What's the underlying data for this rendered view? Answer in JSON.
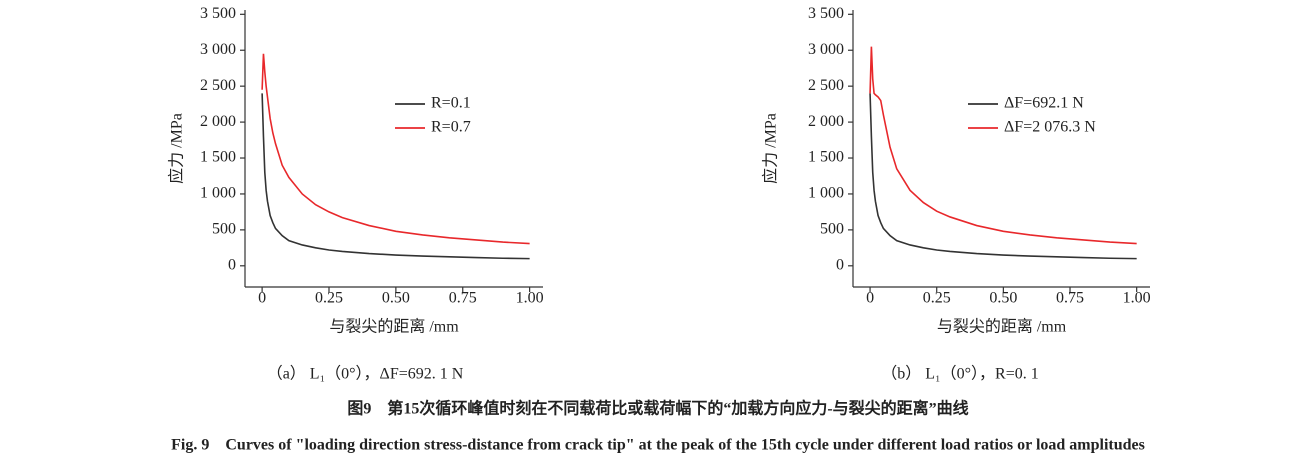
{
  "chart_data": [
    {
      "type": "line",
      "subcaption": "（a） L₁（0°），ΔF=692. 1 N",
      "xlabel": "与裂尖的距离 /mm",
      "ylabel": "应力 /MPa",
      "x": [
        0,
        0.005,
        0.01,
        0.015,
        0.02,
        0.03,
        0.04,
        0.05,
        0.075,
        0.1,
        0.15,
        0.2,
        0.25,
        0.3,
        0.4,
        0.5,
        0.6,
        0.7,
        0.8,
        0.9,
        1.0
      ],
      "series": [
        {
          "name": "R=0.1",
          "color": "#333333",
          "values": [
            2400,
            1800,
            1300,
            1050,
            900,
            700,
            600,
            520,
            420,
            350,
            290,
            250,
            220,
            200,
            170,
            150,
            135,
            125,
            115,
            105,
            100
          ]
        },
        {
          "name": "R=0.7",
          "color": "#e8282b",
          "values": [
            2450,
            2950,
            2700,
            2500,
            2350,
            2050,
            1850,
            1700,
            1400,
            1230,
            1000,
            850,
            750,
            670,
            560,
            480,
            430,
            390,
            360,
            330,
            310
          ]
        }
      ],
      "xlim": [
        -0.064,
        1.05
      ],
      "ylim": [
        -295,
        3560
      ],
      "xticks": [
        0,
        0.25,
        {
          "value": 0.5,
          "label": "0.50"
        },
        0.75,
        {
          "value": 1,
          "label": "1.00"
        }
      ],
      "yticks": [
        0,
        500,
        {
          "value": 1000,
          "label": "1 000"
        },
        {
          "value": 1500,
          "label": "1 500"
        },
        {
          "value": 2000,
          "label": "2 000"
        },
        {
          "value": 2500,
          "label": "2 500"
        },
        {
          "value": 3000,
          "label": "3 000"
        },
        {
          "value": 3500,
          "label": "3 500"
        }
      ]
    },
    {
      "type": "line",
      "subcaption": "（b） L₁（0°），R=0. 1",
      "xlabel": "与裂尖的距离 /mm",
      "ylabel": "应力 /MPa",
      "x": [
        0,
        0.005,
        0.01,
        0.015,
        0.02,
        0.03,
        0.04,
        0.05,
        0.075,
        0.1,
        0.15,
        0.2,
        0.25,
        0.3,
        0.4,
        0.5,
        0.6,
        0.7,
        0.8,
        0.9,
        1.0
      ],
      "series": [
        {
          "name": "ΔF=692.1 N",
          "color": "#333333",
          "values": [
            2400,
            1800,
            1300,
            1050,
            900,
            700,
            600,
            520,
            420,
            350,
            290,
            250,
            220,
            200,
            170,
            150,
            135,
            125,
            115,
            105,
            100
          ]
        },
        {
          "name": "ΔF=2 076.3 N",
          "color": "#e8282b",
          "values": [
            2400,
            3050,
            2600,
            2400,
            2380,
            2350,
            2300,
            2100,
            1650,
            1350,
            1050,
            880,
            760,
            680,
            560,
            480,
            430,
            390,
            360,
            330,
            310
          ]
        }
      ],
      "xlim": [
        -0.064,
        1.05
      ],
      "ylim": [
        -295,
        3560
      ],
      "xticks": [
        0,
        0.25,
        {
          "value": 0.5,
          "label": "0.50"
        },
        0.75,
        {
          "value": 1,
          "label": "1.00"
        }
      ],
      "yticks": [
        0,
        500,
        {
          "value": 1000,
          "label": "1 000"
        },
        {
          "value": 1500,
          "label": "1 500"
        },
        {
          "value": 2000,
          "label": "2 000"
        },
        {
          "value": 2500,
          "label": "2 500"
        },
        {
          "value": 3000,
          "label": "3 000"
        },
        {
          "value": 3500,
          "label": "3 500"
        }
      ]
    }
  ],
  "figure": {
    "caption_cn": "图9　第15次循环峰值时刻在不同载荷比或载荷幅下的“加载方向应力-与裂尖的距离”曲线",
    "caption_en": "Fig. 9　Curves of \"loading direction stress-distance from crack tip\" at the peak of the 15th cycle under different load ratios or load amplitudes"
  }
}
